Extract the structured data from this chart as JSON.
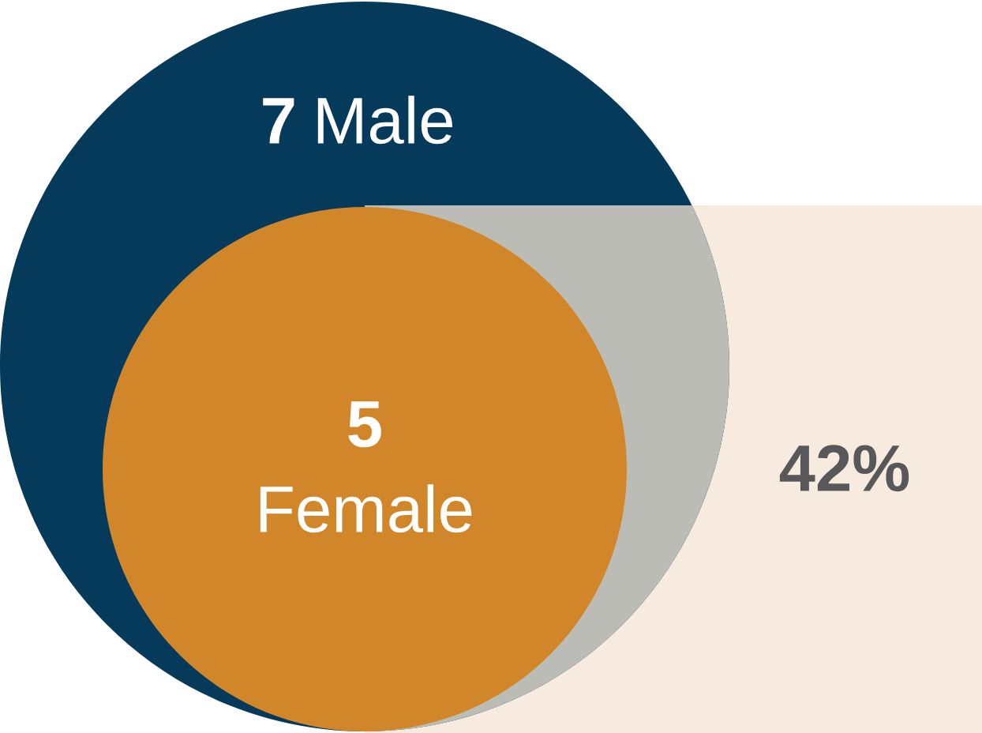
{
  "chart_data": {
    "type": "other",
    "categories": [
      "Male",
      "Female"
    ],
    "values": [
      7,
      5
    ],
    "data_labels": true,
    "colors": [
      "#053a5a",
      "#d2862a"
    ],
    "annotations": [
      "42%"
    ]
  }
}
